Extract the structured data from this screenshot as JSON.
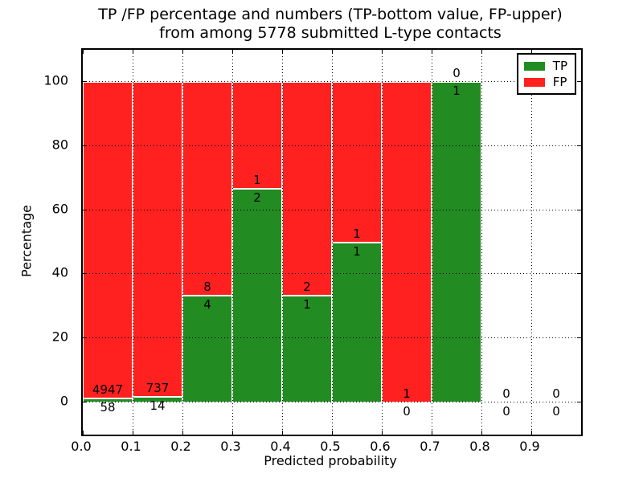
{
  "figure": {
    "title_line1": "TP /FP percentage and numbers (TP-bottom value, FP-upper)",
    "title_line2": "from among 5778 submitted L-type contacts",
    "xlabel": "Predicted probability",
    "ylabel": "Percentage"
  },
  "legend": {
    "items": [
      {
        "label": "TP",
        "color": "#228b22"
      },
      {
        "label": "FP",
        "color": "#ff2020"
      }
    ]
  },
  "colors": {
    "tp_green": "#228b22",
    "fp_red": "#ff2020",
    "bar_edge": "#ffffff",
    "grid": "#000000",
    "text": "#000000"
  },
  "chart_data": {
    "type": "bar",
    "stacked": true,
    "title": "TP /FP percentage and numbers (TP-bottom value, FP-upper) from among 5778 submitted L-type contacts",
    "xlabel": "Predicted probability",
    "ylabel": "Percentage",
    "xlim": [
      0.0,
      1.0
    ],
    "ylim": [
      -10,
      110
    ],
    "x_tick_labels": [
      "0.0",
      "0.1",
      "0.2",
      "0.3",
      "0.4",
      "0.5",
      "0.6",
      "0.7",
      "0.8",
      "0.9"
    ],
    "y_tick_values": [
      0,
      20,
      40,
      60,
      80,
      100
    ],
    "grid": true,
    "legend_position": "upper-right",
    "series": [
      {
        "name": "TP",
        "color": "#228b22"
      },
      {
        "name": "FP",
        "color": "#ff2020"
      }
    ],
    "total_contacts": 5778,
    "bins": [
      {
        "x_start": 0.0,
        "x_end": 0.1,
        "tp_count": 58,
        "fp_count": 4947,
        "tp_pct": 1.16,
        "fp_pct": 98.84,
        "has_bar": true
      },
      {
        "x_start": 0.1,
        "x_end": 0.2,
        "tp_count": 14,
        "fp_count": 737,
        "tp_pct": 1.86,
        "fp_pct": 98.14,
        "has_bar": true
      },
      {
        "x_start": 0.2,
        "x_end": 0.3,
        "tp_count": 4,
        "fp_count": 8,
        "tp_pct": 33.33,
        "fp_pct": 66.67,
        "has_bar": true
      },
      {
        "x_start": 0.3,
        "x_end": 0.4,
        "tp_count": 2,
        "fp_count": 1,
        "tp_pct": 66.67,
        "fp_pct": 33.33,
        "has_bar": true
      },
      {
        "x_start": 0.4,
        "x_end": 0.5,
        "tp_count": 1,
        "fp_count": 2,
        "tp_pct": 33.33,
        "fp_pct": 66.67,
        "has_bar": true
      },
      {
        "x_start": 0.5,
        "x_end": 0.6,
        "tp_count": 1,
        "fp_count": 1,
        "tp_pct": 50.0,
        "fp_pct": 50.0,
        "has_bar": true
      },
      {
        "x_start": 0.6,
        "x_end": 0.7,
        "tp_count": 0,
        "fp_count": 1,
        "tp_pct": 0.0,
        "fp_pct": 100.0,
        "has_bar": true
      },
      {
        "x_start": 0.7,
        "x_end": 0.8,
        "tp_count": 1,
        "fp_count": 0,
        "tp_pct": 100.0,
        "fp_pct": 0.0,
        "has_bar": true
      },
      {
        "x_start": 0.8,
        "x_end": 0.9,
        "tp_count": 0,
        "fp_count": 0,
        "tp_pct": null,
        "fp_pct": null,
        "has_bar": false
      },
      {
        "x_start": 0.9,
        "x_end": 1.0,
        "tp_count": 0,
        "fp_count": 0,
        "tp_pct": null,
        "fp_pct": null,
        "has_bar": false
      }
    ]
  }
}
